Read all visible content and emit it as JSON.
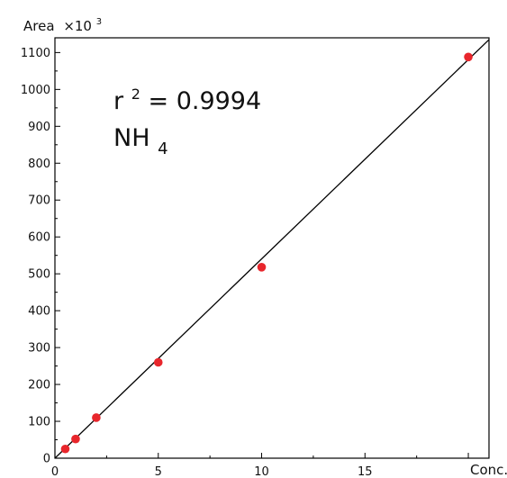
{
  "chart_data": {
    "type": "scatter",
    "title": "",
    "ylabel": "Area",
    "ylabel_multiplier": "×10",
    "ylabel_exponent": "3",
    "xlabel": "Conc.",
    "xlim": [
      0,
      21
    ],
    "ylim": [
      0,
      1140
    ],
    "x_ticks": [
      0,
      5,
      10,
      15
    ],
    "y_ticks": [
      0,
      100,
      200,
      300,
      400,
      500,
      600,
      700,
      800,
      900,
      1000,
      1100
    ],
    "grid": false,
    "legend": "none",
    "annotations": {
      "r_symbol": "r",
      "r_exponent": "2",
      "r_value": " = 0.9994",
      "compound": "NH",
      "compound_subscript": "4"
    },
    "series": [
      {
        "color": "#e8262c",
        "x": [
          0.5,
          1,
          2,
          5,
          10,
          20
        ],
        "y": [
          25,
          52,
          110,
          260,
          518,
          1088
        ]
      }
    ],
    "fit_line": {
      "color": "#000000",
      "x": [
        0,
        21
      ],
      "y": [
        0,
        1135
      ]
    }
  }
}
